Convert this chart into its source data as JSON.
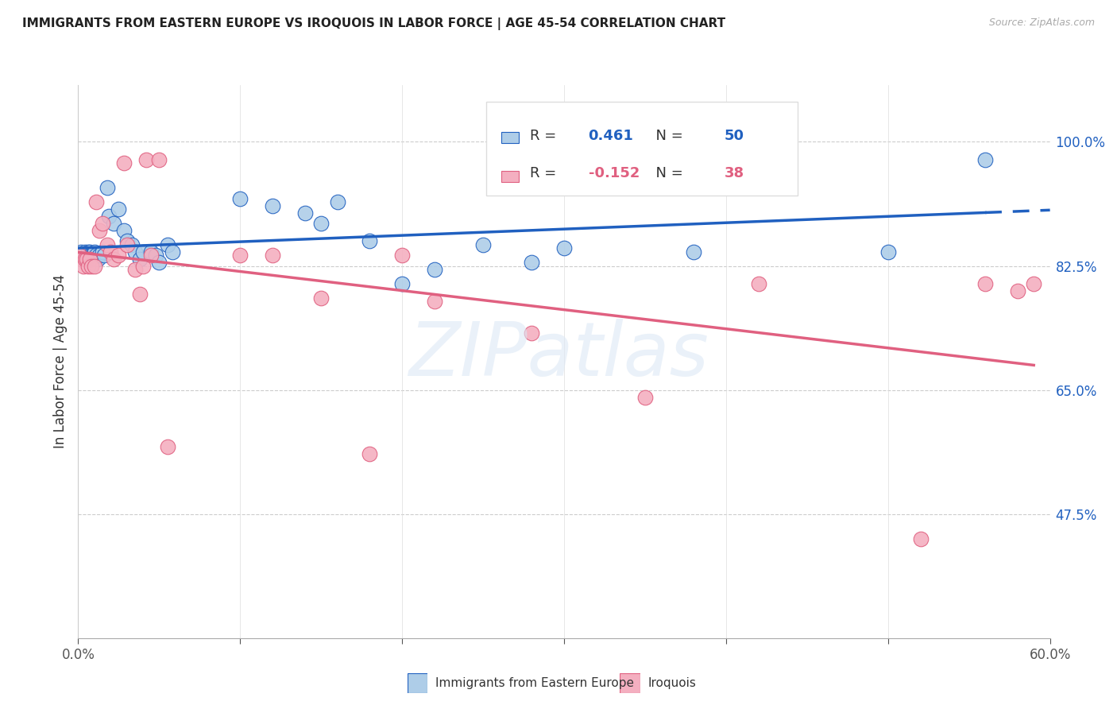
{
  "title": "IMMIGRANTS FROM EASTERN EUROPE VS IROQUOIS IN LABOR FORCE | AGE 45-54 CORRELATION CHART",
  "source": "Source: ZipAtlas.com",
  "ylabel": "In Labor Force | Age 45-54",
  "xmin": 0.0,
  "xmax": 0.6,
  "ymin": 0.3,
  "ymax": 1.08,
  "yticks": [
    1.0,
    0.825,
    0.65,
    0.475
  ],
  "ytick_labels": [
    "100.0%",
    "82.5%",
    "65.0%",
    "47.5%"
  ],
  "xticks": [
    0.0,
    0.1,
    0.2,
    0.3,
    0.4,
    0.5,
    0.6
  ],
  "blue_R": 0.461,
  "blue_N": 50,
  "pink_R": -0.152,
  "pink_N": 38,
  "blue_label": "Immigrants from Eastern Europe",
  "pink_label": "Iroquois",
  "blue_color": "#aecde8",
  "pink_color": "#f4afc0",
  "blue_line_color": "#2060c0",
  "pink_line_color": "#e06080",
  "blue_x": [
    0.001,
    0.002,
    0.003,
    0.003,
    0.004,
    0.004,
    0.005,
    0.005,
    0.006,
    0.006,
    0.007,
    0.007,
    0.008,
    0.009,
    0.01,
    0.011,
    0.012,
    0.013,
    0.015,
    0.016,
    0.018,
    0.019,
    0.022,
    0.025,
    0.028,
    0.03,
    0.033,
    0.035,
    0.038,
    0.04,
    0.045,
    0.048,
    0.05,
    0.055,
    0.058,
    0.1,
    0.12,
    0.14,
    0.15,
    0.16,
    0.18,
    0.2,
    0.22,
    0.25,
    0.28,
    0.3,
    0.35,
    0.38,
    0.5,
    0.56
  ],
  "blue_y": [
    0.84,
    0.845,
    0.84,
    0.835,
    0.84,
    0.845,
    0.84,
    0.835,
    0.84,
    0.845,
    0.845,
    0.84,
    0.84,
    0.84,
    0.845,
    0.84,
    0.835,
    0.84,
    0.845,
    0.84,
    0.935,
    0.895,
    0.885,
    0.905,
    0.875,
    0.86,
    0.855,
    0.845,
    0.835,
    0.845,
    0.845,
    0.84,
    0.83,
    0.855,
    0.845,
    0.92,
    0.91,
    0.9,
    0.885,
    0.915,
    0.86,
    0.8,
    0.82,
    0.855,
    0.83,
    0.85,
    0.94,
    0.845,
    0.845,
    0.975
  ],
  "pink_x": [
    0.001,
    0.002,
    0.003,
    0.004,
    0.005,
    0.006,
    0.007,
    0.008,
    0.01,
    0.011,
    0.013,
    0.015,
    0.018,
    0.02,
    0.022,
    0.025,
    0.028,
    0.03,
    0.035,
    0.038,
    0.04,
    0.042,
    0.045,
    0.05,
    0.055,
    0.1,
    0.12,
    0.15,
    0.18,
    0.2,
    0.22,
    0.28,
    0.35,
    0.42,
    0.52,
    0.56,
    0.58,
    0.59
  ],
  "pink_y": [
    0.84,
    0.835,
    0.825,
    0.835,
    0.835,
    0.825,
    0.835,
    0.825,
    0.825,
    0.915,
    0.875,
    0.885,
    0.855,
    0.845,
    0.835,
    0.84,
    0.97,
    0.855,
    0.82,
    0.785,
    0.825,
    0.975,
    0.84,
    0.975,
    0.57,
    0.84,
    0.84,
    0.78,
    0.56,
    0.84,
    0.775,
    0.73,
    0.64,
    0.8,
    0.44,
    0.8,
    0.79,
    0.8
  ]
}
